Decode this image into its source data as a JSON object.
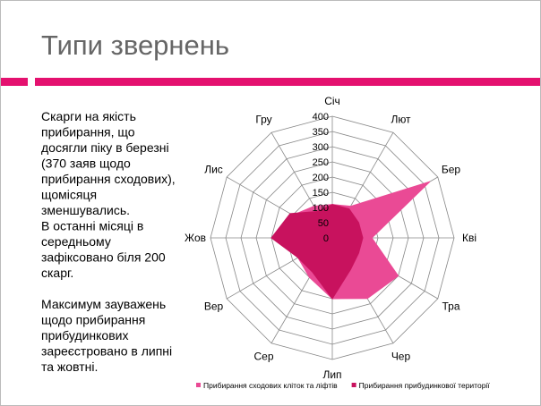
{
  "slide": {
    "title": "Типи звернень",
    "body": [
      [
        "Скарги на якість",
        "прибирання, що",
        "досягли піку в березні",
        "(370 заяв щодо",
        "прибирання сходових),",
        "щомісяця",
        "зменшувались.",
        "В останні місяці в",
        "середньому",
        "зафіксовано біля 200",
        "скарг."
      ],
      [
        "Максимум зауважень",
        "щодо прибирання",
        "прибудинкових",
        "зареєстровано в липні",
        "та жовтні."
      ]
    ]
  },
  "chart_data": {
    "type": "radar",
    "categories": [
      "Січ",
      "Лют",
      "Бер",
      "Кві",
      "Тра",
      "Чер",
      "Лип",
      "Сер",
      "Вер",
      "Жов",
      "Лис",
      "Гру"
    ],
    "series": [
      {
        "name": "Прибирання сходових кліток та ліфтів",
        "color": "#ea4a95",
        "values": [
          110,
          120,
          370,
          130,
          250,
          230,
          200,
          150,
          130,
          180,
          150,
          120
        ]
      },
      {
        "name": "Прибирання прибудинкової території",
        "color": "#c8125e",
        "values": [
          110,
          110,
          100,
          100,
          100,
          120,
          200,
          130,
          130,
          200,
          160,
          100
        ]
      }
    ],
    "ylim": [
      0,
      400
    ],
    "yticks": [
      0,
      50,
      100,
      150,
      200,
      250,
      300,
      350,
      400
    ],
    "grid": true,
    "legend": "bottom"
  }
}
